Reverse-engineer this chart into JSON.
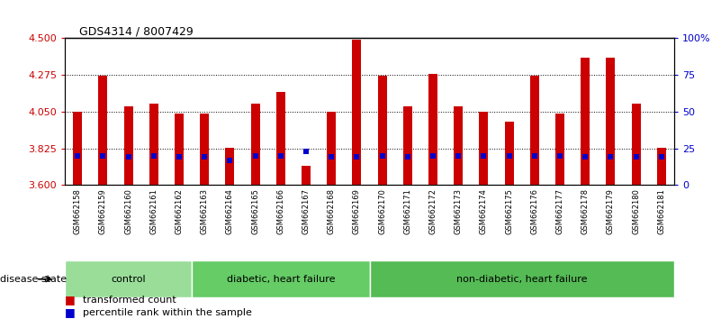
{
  "title": "GDS4314 / 8007429",
  "samples": [
    "GSM662158",
    "GSM662159",
    "GSM662160",
    "GSM662161",
    "GSM662162",
    "GSM662163",
    "GSM662164",
    "GSM662165",
    "GSM662166",
    "GSM662167",
    "GSM662168",
    "GSM662169",
    "GSM662170",
    "GSM662171",
    "GSM662172",
    "GSM662173",
    "GSM662174",
    "GSM662175",
    "GSM662176",
    "GSM662177",
    "GSM662178",
    "GSM662179",
    "GSM662180",
    "GSM662181"
  ],
  "red_values": [
    4.05,
    4.27,
    4.08,
    4.1,
    4.04,
    4.04,
    3.83,
    4.1,
    4.17,
    3.72,
    4.05,
    4.49,
    4.27,
    4.08,
    4.28,
    4.08,
    4.05,
    3.99,
    4.27,
    4.04,
    4.38,
    4.38,
    4.1,
    3.83
  ],
  "blue_values": [
    20,
    20,
    19,
    20,
    19,
    19,
    17,
    20,
    20,
    23,
    19,
    19,
    20,
    19,
    20,
    20,
    20,
    20,
    20,
    20,
    19,
    19,
    19,
    19
  ],
  "ymin": 3.6,
  "ymax": 4.5,
  "y2min": 0,
  "y2max": 100,
  "yticks": [
    3.6,
    3.825,
    4.05,
    4.275,
    4.5
  ],
  "y2ticks": [
    0,
    25,
    50,
    75,
    100
  ],
  "y2ticklabels": [
    "0",
    "25",
    "50",
    "75",
    "100%"
  ],
  "bar_color": "#cc0000",
  "blue_color": "#0000cc",
  "groups": [
    {
      "label": "control",
      "start": 0,
      "end": 5,
      "color": "#99dd99"
    },
    {
      "label": "diabetic, heart failure",
      "start": 5,
      "end": 12,
      "color": "#66cc66"
    },
    {
      "label": "non-diabetic, heart failure",
      "start": 12,
      "end": 24,
      "color": "#55bb55"
    }
  ],
  "disease_state_label": "disease state",
  "legend_items": [
    {
      "label": "transformed count",
      "color": "#cc0000"
    },
    {
      "label": "percentile rank within the sample",
      "color": "#0000cc"
    }
  ],
  "tick_bg_color": "#cccccc",
  "bar_width": 0.35
}
